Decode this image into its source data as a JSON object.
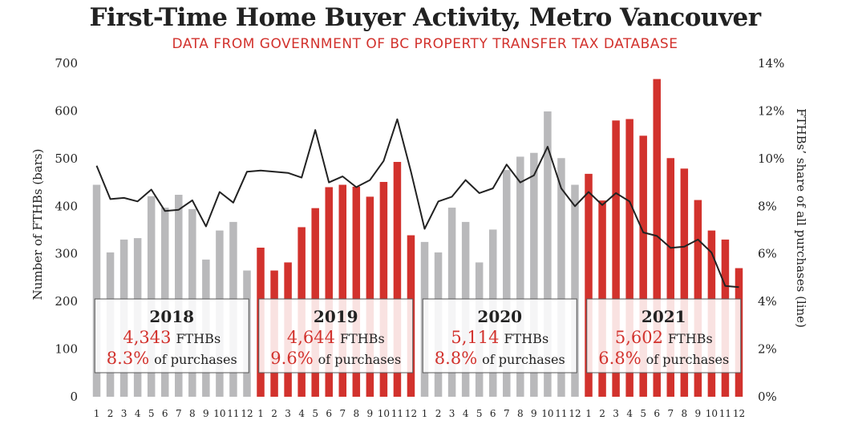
{
  "chart_data": {
    "type": "bar",
    "title": "First-Time Home Buyer Activity, Metro Vancouver",
    "subtitle": "DATA FROM GOVERNMENT OF BC PROPERTY TRANSFER TAX DATABASE",
    "ylabel": "Number of FTHBs (bars)",
    "y2label": "FTHBs’ share of all purchases  (line)",
    "ylim": [
      0,
      700
    ],
    "y2lim": [
      0,
      14
    ],
    "yticks": [
      "0",
      "100",
      "200",
      "300",
      "400",
      "500",
      "600",
      "700"
    ],
    "y2ticks": [
      "0%",
      "2%",
      "4%",
      "6%",
      "8%",
      "10%",
      "12%",
      "14%"
    ],
    "month_labels": [
      "1",
      "2",
      "3",
      "4",
      "5",
      "6",
      "7",
      "8",
      "9",
      "10",
      "11",
      "12"
    ],
    "colors": {
      "grey_bar": "#b9b9bb",
      "red_bar": "#d2322d",
      "line": "#222222",
      "highlight": "#d2322d"
    },
    "years": [
      {
        "year": "2018",
        "bar_color": "grey",
        "total": "4,343",
        "total_suffix": "FTHBs",
        "share": "8.3%",
        "share_suffix": "of purchases",
        "bars": [
          445,
          303,
          330,
          333,
          421,
          397,
          424,
          394,
          288,
          349,
          367,
          265
        ],
        "share_line": [
          9.7,
          8.3,
          8.35,
          8.2,
          8.7,
          7.8,
          7.85,
          8.25,
          7.15,
          8.6,
          8.15,
          9.45
        ]
      },
      {
        "year": "2019",
        "bar_color": "red",
        "total": "4,644",
        "total_suffix": "FTHBs",
        "share": "9.6%",
        "share_suffix": "of purchases",
        "bars": [
          313,
          265,
          282,
          356,
          396,
          440,
          445,
          441,
          420,
          451,
          493,
          339
        ],
        "share_line": [
          9.5,
          9.45,
          9.4,
          9.2,
          11.2,
          9.0,
          9.25,
          8.8,
          9.1,
          9.9,
          11.65,
          9.45
        ]
      },
      {
        "year": "2020",
        "bar_color": "grey",
        "total": "5,114",
        "total_suffix": "FTHBs",
        "share": "8.8%",
        "share_suffix": "of purchases",
        "bars": [
          325,
          303,
          397,
          367,
          282,
          351,
          476,
          504,
          512,
          599,
          501,
          445
        ],
        "share_line": [
          7.05,
          8.2,
          8.4,
          9.1,
          8.55,
          8.75,
          9.75,
          9.0,
          9.3,
          10.5,
          8.75,
          8.0
        ]
      },
      {
        "year": "2021",
        "bar_color": "red",
        "total": "5,602",
        "total_suffix": "FTHBs",
        "share": "6.8%",
        "share_suffix": "of purchases",
        "bars": [
          468,
          412,
          580,
          583,
          548,
          667,
          501,
          479,
          413,
          349,
          330,
          270
        ],
        "share_line": [
          8.6,
          8.05,
          8.55,
          8.2,
          6.9,
          6.75,
          6.25,
          6.3,
          6.6,
          6.05,
          4.65,
          4.6
        ]
      }
    ]
  }
}
